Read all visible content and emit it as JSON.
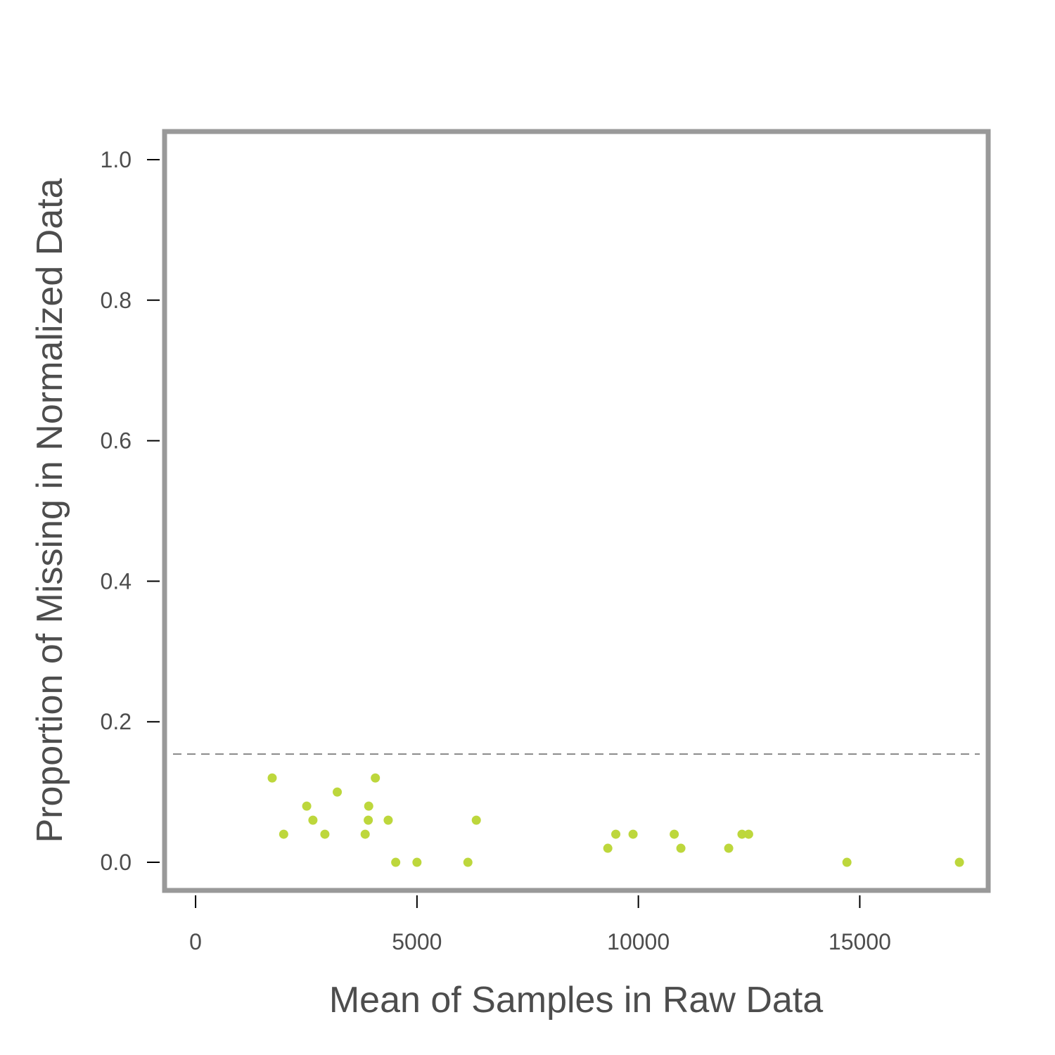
{
  "chart_data": {
    "type": "scatter",
    "title": "",
    "xlabel": "Mean of Samples in Raw Data",
    "ylabel": "Proportion of Missing in Normalized Data",
    "xlim": [
      -700,
      17900
    ],
    "ylim": [
      -0.04,
      1.04
    ],
    "x_ticks": [
      0,
      5000,
      10000,
      15000
    ],
    "x_tick_labels": [
      "0",
      "5000",
      "10000",
      "15000"
    ],
    "y_ticks": [
      0.0,
      0.2,
      0.4,
      0.6,
      0.8,
      1.0
    ],
    "y_tick_labels": [
      "0.0",
      "0.2",
      "0.4",
      "0.6",
      "0.8",
      "1.0"
    ],
    "grid": false,
    "reference_line": {
      "y": 0.154,
      "style": "dashed",
      "color": "#666666"
    },
    "point_color": "#bdd73c",
    "frame_color": "#999999",
    "series": [
      {
        "points": [
          {
            "x": 1730,
            "y": 0.12
          },
          {
            "x": 1990,
            "y": 0.04
          },
          {
            "x": 2510,
            "y": 0.08
          },
          {
            "x": 2650,
            "y": 0.06
          },
          {
            "x": 2920,
            "y": 0.04
          },
          {
            "x": 3200,
            "y": 0.1
          },
          {
            "x": 3830,
            "y": 0.04
          },
          {
            "x": 3900,
            "y": 0.06
          },
          {
            "x": 3910,
            "y": 0.08
          },
          {
            "x": 4060,
            "y": 0.12
          },
          {
            "x": 4350,
            "y": 0.06
          },
          {
            "x": 4520,
            "y": 0.0
          },
          {
            "x": 5000,
            "y": 0.0
          },
          {
            "x": 6150,
            "y": 0.0
          },
          {
            "x": 6340,
            "y": 0.06
          },
          {
            "x": 9310,
            "y": 0.02
          },
          {
            "x": 9490,
            "y": 0.04
          },
          {
            "x": 9880,
            "y": 0.04
          },
          {
            "x": 10810,
            "y": 0.04
          },
          {
            "x": 10960,
            "y": 0.02
          },
          {
            "x": 12040,
            "y": 0.02
          },
          {
            "x": 12340,
            "y": 0.04
          },
          {
            "x": 12490,
            "y": 0.04
          },
          {
            "x": 14710,
            "y": 0.0
          },
          {
            "x": 17250,
            "y": 0.0
          }
        ]
      }
    ]
  }
}
